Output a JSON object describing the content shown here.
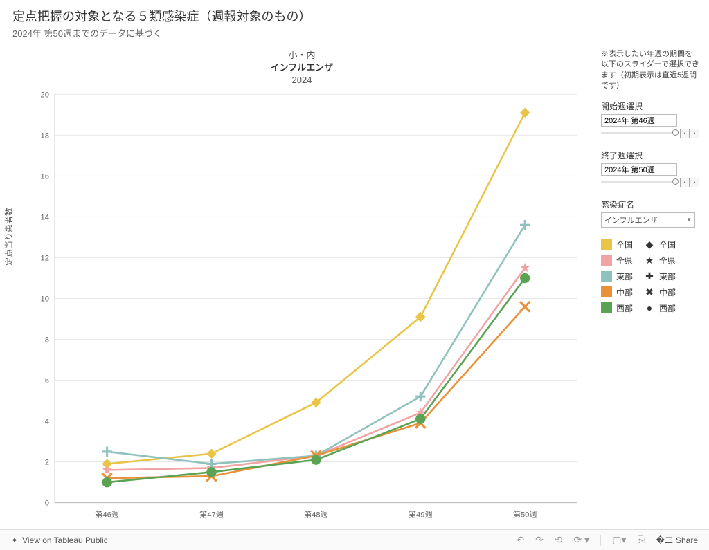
{
  "header": {
    "title": "定点把握の対象となる５類感染症（週報対象のもの）",
    "subtitle": "2024年 第50週までのデータに基づく"
  },
  "chart_header": {
    "line1": "小・内",
    "line2": "インフルエンザ",
    "line3": "2024"
  },
  "chart": {
    "type": "line",
    "y_axis_label": "定点当り患者数",
    "x_categories": [
      "第46週",
      "第47週",
      "第48週",
      "第49週",
      "第50週"
    ],
    "ylim": [
      0,
      20
    ],
    "ytick_step": 2,
    "background_color": "#ffffff",
    "grid_color": "#e8e8e8",
    "axis_color": "#bbbbbb",
    "tick_fontsize": 11,
    "label_fontsize": 12,
    "line_width": 2.5,
    "marker_size": 7,
    "series": [
      {
        "name": "全国",
        "color": "#e8c547",
        "marker": "diamond",
        "values": [
          1.9,
          2.4,
          4.9,
          9.1,
          19.1
        ]
      },
      {
        "name": "全県",
        "color": "#f2a3a3",
        "marker": "star",
        "values": [
          1.6,
          1.7,
          2.3,
          4.4,
          11.5
        ]
      },
      {
        "name": "東部",
        "color": "#8fc1bd",
        "marker": "plus",
        "values": [
          2.5,
          1.9,
          2.3,
          5.2,
          13.6
        ]
      },
      {
        "name": "中部",
        "color": "#e8913a",
        "marker": "cross",
        "values": [
          1.2,
          1.3,
          2.3,
          3.9,
          9.6
        ]
      },
      {
        "name": "西部",
        "color": "#5aa352",
        "marker": "circle-fill",
        "values": [
          1.0,
          1.5,
          2.1,
          4.1,
          11.0
        ]
      }
    ]
  },
  "sidebar": {
    "note": "※表示したい年週の期間を以下のスライダーで選択できます（初期表示は直近5週間です）",
    "start_week_label": "開始週選択",
    "start_week_value": "2024年 第46週",
    "end_week_label": "終了週選択",
    "end_week_value": "2024年 第50週",
    "disease_label": "感染症名",
    "disease_value": "インフルエンザ",
    "legend_color": [
      {
        "label": "全国",
        "color": "#e8c547"
      },
      {
        "label": "全県",
        "color": "#f2a3a3"
      },
      {
        "label": "東部",
        "color": "#8fc1bd"
      },
      {
        "label": "中部",
        "color": "#e8913a"
      },
      {
        "label": "西部",
        "color": "#5aa352"
      }
    ],
    "legend_marker": [
      {
        "label": "全国",
        "glyph": "◆"
      },
      {
        "label": "全県",
        "glyph": "★"
      },
      {
        "label": "東部",
        "glyph": "✚"
      },
      {
        "label": "中部",
        "glyph": "✖"
      },
      {
        "label": "西部",
        "glyph": "●"
      }
    ]
  },
  "toolbar": {
    "view_label": "View on Tableau Public",
    "share_label": "Share"
  }
}
